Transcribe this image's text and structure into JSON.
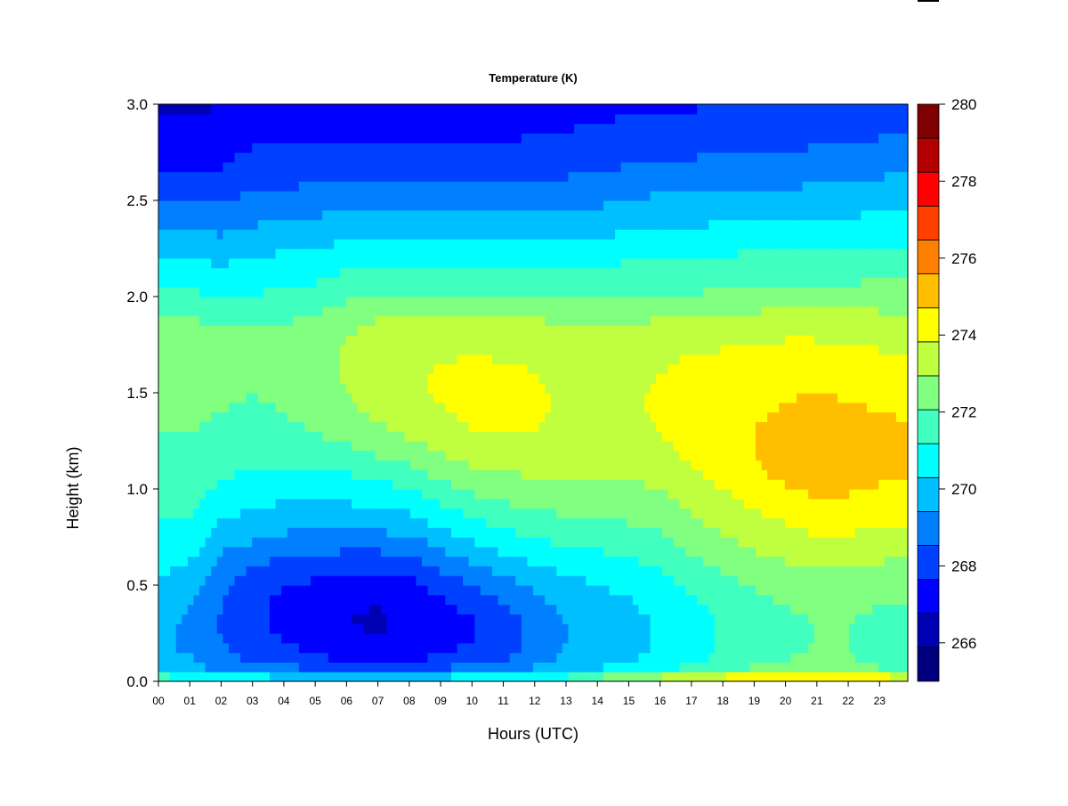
{
  "chart_data": {
    "type": "heatmap",
    "title": "Temperature (K)",
    "xlabel": "Hours (UTC)",
    "ylabel": "Height (km)",
    "x_ticks": [
      "00",
      "01",
      "02",
      "03",
      "04",
      "05",
      "06",
      "07",
      "08",
      "09",
      "10",
      "11",
      "12",
      "13",
      "14",
      "15",
      "16",
      "17",
      "18",
      "19",
      "20",
      "21",
      "22",
      "23"
    ],
    "y_ticks": [
      "0.0",
      "0.5",
      "1.0",
      "1.5",
      "2.0",
      "2.5",
      "3.0"
    ],
    "xlim": [
      0,
      23.9
    ],
    "ylim": [
      0,
      3.0
    ],
    "colorbar": {
      "min": 265,
      "max": 280,
      "step": 1,
      "tick_labels": [
        "266",
        "268",
        "270",
        "272",
        "274",
        "276",
        "278",
        "280"
      ],
      "colors": [
        "#00007F",
        "#0000B3",
        "#0000FF",
        "#0040FF",
        "#0080FF",
        "#00BFFF",
        "#00FFFF",
        "#40FFBF",
        "#80FF80",
        "#BFFF40",
        "#FFFF00",
        "#FFBF00",
        "#FF8000",
        "#FF4000",
        "#FF0000",
        "#B30000",
        "#7F0000"
      ]
    },
    "heights_km": [
      0.0,
      0.05,
      0.1,
      0.2,
      0.3,
      0.4,
      0.5,
      0.6,
      0.7,
      0.8,
      0.9,
      1.0,
      1.1,
      1.2,
      1.3,
      1.4,
      1.5,
      1.6,
      1.7,
      1.8,
      1.9,
      2.0,
      2.2,
      2.4,
      2.6,
      2.8,
      3.0
    ],
    "hours_utc": [
      0,
      1,
      2,
      3,
      4,
      5,
      6,
      7,
      8,
      9,
      10,
      11,
      12,
      13,
      14,
      15,
      16,
      17,
      18,
      19,
      20,
      21,
      22,
      23,
      23.9
    ],
    "temperature_K": [
      [
        273.3,
        270.8,
        270.3,
        270.2,
        270.3,
        270.6,
        270.8,
        271.2,
        271.6,
        271.9,
        272.2,
        272.4,
        272.6,
        272.8,
        273.0,
        273.2,
        273.3,
        273.4,
        273.4,
        273.3,
        273.0,
        272.2,
        271.0,
        269.6,
        268.3,
        267.5,
        266.8
      ],
      [
        273.2,
        270.6,
        270.1,
        269.8,
        269.8,
        270.1,
        270.4,
        270.9,
        271.4,
        271.8,
        272.1,
        272.4,
        272.6,
        272.8,
        273.0,
        273.2,
        273.3,
        273.4,
        273.4,
        273.3,
        273.0,
        272.2,
        271.0,
        269.6,
        268.3,
        267.4,
        266.8
      ],
      [
        272.6,
        270.0,
        269.4,
        269.0,
        268.9,
        269.0,
        269.2,
        269.6,
        270.2,
        270.8,
        271.3,
        271.8,
        272.2,
        272.6,
        272.8,
        273.0,
        273.1,
        273.2,
        273.2,
        273.1,
        272.8,
        272.0,
        270.8,
        269.5,
        268.3,
        267.5,
        267.0
      ],
      [
        272.4,
        269.8,
        269.0,
        268.5,
        268.3,
        268.3,
        268.5,
        269.0,
        269.8,
        270.5,
        271.0,
        271.5,
        272.0,
        272.4,
        272.7,
        272.9,
        273.0,
        273.1,
        273.2,
        273.1,
        272.8,
        272.1,
        271.0,
        269.8,
        268.7,
        267.9,
        267.3
      ],
      [
        272.2,
        269.6,
        268.6,
        268.0,
        267.7,
        267.7,
        268.0,
        268.6,
        269.5,
        270.2,
        270.8,
        271.4,
        271.9,
        272.4,
        272.8,
        273.0,
        273.1,
        273.2,
        273.2,
        273.1,
        272.8,
        272.2,
        271.2,
        270.0,
        268.8,
        267.9,
        267.3
      ],
      [
        272.0,
        269.4,
        268.3,
        267.6,
        267.3,
        267.4,
        267.8,
        268.5,
        269.3,
        270.1,
        270.8,
        271.4,
        272.0,
        272.6,
        273.0,
        273.3,
        273.5,
        273.6,
        273.6,
        273.5,
        273.1,
        272.4,
        271.3,
        270.1,
        268.9,
        268.0,
        267.5
      ],
      [
        272.0,
        269.2,
        268.0,
        267.3,
        267.0,
        267.1,
        267.6,
        268.3,
        269.2,
        270.1,
        270.8,
        271.5,
        272.1,
        272.8,
        273.4,
        273.8,
        274.0,
        274.1,
        274.1,
        274.0,
        273.6,
        272.8,
        271.6,
        270.3,
        269.0,
        268.0,
        267.5
      ],
      [
        272.0,
        269.1,
        267.8,
        267.1,
        266.9,
        267.0,
        267.5,
        268.3,
        269.2,
        270.2,
        271.0,
        271.7,
        272.4,
        273.2,
        273.8,
        274.2,
        274.5,
        274.6,
        274.5,
        274.3,
        273.9,
        273.0,
        271.7,
        270.3,
        269.0,
        268.0,
        267.4
      ],
      [
        272.2,
        269.2,
        268.0,
        267.3,
        267.1,
        267.2,
        267.6,
        268.4,
        269.4,
        270.4,
        271.2,
        272.0,
        272.8,
        273.6,
        274.2,
        274.6,
        274.8,
        274.8,
        274.7,
        274.5,
        274.0,
        273.1,
        271.8,
        270.3,
        268.9,
        267.9,
        267.3
      ],
      [
        272.4,
        269.5,
        268.3,
        267.6,
        267.5,
        267.8,
        268.4,
        269.2,
        270.1,
        271.0,
        271.8,
        272.6,
        273.4,
        274.1,
        274.6,
        274.9,
        275.1,
        275.1,
        274.9,
        274.6,
        274.1,
        273.1,
        271.8,
        270.4,
        269.0,
        268.0,
        267.4
      ],
      [
        272.5,
        269.7,
        268.6,
        268.0,
        267.9,
        268.3,
        269.0,
        269.9,
        270.8,
        271.6,
        272.4,
        273.2,
        273.9,
        274.5,
        275.0,
        275.2,
        275.3,
        275.2,
        275.0,
        274.6,
        274.0,
        273.0,
        271.7,
        270.3,
        269.0,
        268.0,
        267.4
      ],
      [
        272.6,
        270.0,
        269.0,
        268.5,
        268.5,
        268.9,
        269.5,
        270.4,
        271.3,
        272.1,
        272.8,
        273.5,
        274.1,
        274.7,
        275.1,
        275.3,
        275.3,
        275.2,
        274.9,
        274.5,
        274.0,
        273.0,
        271.7,
        270.3,
        269.0,
        268.0,
        267.5
      ],
      [
        272.8,
        270.4,
        269.6,
        269.3,
        269.3,
        269.7,
        270.2,
        270.9,
        271.7,
        272.4,
        273.0,
        273.6,
        274.2,
        274.7,
        275.0,
        275.1,
        275.1,
        275.0,
        274.8,
        274.4,
        273.9,
        272.9,
        271.6,
        270.2,
        269.0,
        268.1,
        267.6
      ],
      [
        273.0,
        270.8,
        270.2,
        270.0,
        270.0,
        270.3,
        270.7,
        271.3,
        272.0,
        272.6,
        273.2,
        273.7,
        274.2,
        274.6,
        274.8,
        274.9,
        274.9,
        274.8,
        274.6,
        274.3,
        273.8,
        272.9,
        271.6,
        270.3,
        269.1,
        268.2,
        267.6
      ],
      [
        274.5,
        271.3,
        270.6,
        270.4,
        270.4,
        270.6,
        271.0,
        271.5,
        272.1,
        272.7,
        273.2,
        273.7,
        274.1,
        274.5,
        274.8,
        274.9,
        274.9,
        274.8,
        274.6,
        274.3,
        273.8,
        272.9,
        271.7,
        270.4,
        269.2,
        268.3,
        267.7
      ],
      [
        275.5,
        271.6,
        270.9,
        270.7,
        270.7,
        270.9,
        271.2,
        271.7,
        272.3,
        272.9,
        273.4,
        273.8,
        274.2,
        274.6,
        274.8,
        274.9,
        274.9,
        274.8,
        274.6,
        274.3,
        273.8,
        273.0,
        271.9,
        270.6,
        269.4,
        268.5,
        267.8
      ],
      [
        276.0,
        272.0,
        271.3,
        271.1,
        271.1,
        271.3,
        271.6,
        272.1,
        272.6,
        273.1,
        273.6,
        274.0,
        274.4,
        274.8,
        275.0,
        275.1,
        275.1,
        275.0,
        274.8,
        274.4,
        273.9,
        273.1,
        272.0,
        270.8,
        269.6,
        268.6,
        267.9
      ],
      [
        276.4,
        272.5,
        271.8,
        271.6,
        271.6,
        271.8,
        272.2,
        272.7,
        273.2,
        273.7,
        274.1,
        274.5,
        274.9,
        275.2,
        275.4,
        275.5,
        275.4,
        275.3,
        275.0,
        274.6,
        274.0,
        273.1,
        272.0,
        270.8,
        269.6,
        268.6,
        267.9
      ],
      [
        276.9,
        273.0,
        272.3,
        272.1,
        272.1,
        272.3,
        272.7,
        273.2,
        273.7,
        274.2,
        274.6,
        275.0,
        275.4,
        275.6,
        275.7,
        275.7,
        275.6,
        275.4,
        275.1,
        274.7,
        274.1,
        273.2,
        272.1,
        270.9,
        269.7,
        268.7,
        268.0
      ],
      [
        277.5,
        273.4,
        272.7,
        272.5,
        272.5,
        272.7,
        273.1,
        273.6,
        274.1,
        274.6,
        275.0,
        275.5,
        275.9,
        276.0,
        276.0,
        275.9,
        275.7,
        275.5,
        275.2,
        274.8,
        274.2,
        273.3,
        272.2,
        270.9,
        269.7,
        268.7,
        268.0
      ],
      [
        277.6,
        273.7,
        273.0,
        272.8,
        272.8,
        273.0,
        273.4,
        273.9,
        274.4,
        274.9,
        275.4,
        275.9,
        276.3,
        276.4,
        276.3,
        276.1,
        275.9,
        275.6,
        275.3,
        274.9,
        274.3,
        273.4,
        272.3,
        271.0,
        269.8,
        268.8,
        268.1
      ],
      [
        277.8,
        273.8,
        273.2,
        273.0,
        273.0,
        273.2,
        273.6,
        274.1,
        274.6,
        275.2,
        275.7,
        276.2,
        276.5,
        276.6,
        276.5,
        276.3,
        276.0,
        275.7,
        275.3,
        274.9,
        274.3,
        273.4,
        272.3,
        271.1,
        269.9,
        268.9,
        268.2
      ],
      [
        277.6,
        273.6,
        273.1,
        273.0,
        273.0,
        273.2,
        273.6,
        274.1,
        274.6,
        275.2,
        275.7,
        276.1,
        276.4,
        276.5,
        276.4,
        276.2,
        275.9,
        275.6,
        275.2,
        274.8,
        274.3,
        273.4,
        272.3,
        271.1,
        270.0,
        269.0,
        268.3
      ],
      [
        277.2,
        273.2,
        272.8,
        272.7,
        272.8,
        273.0,
        273.4,
        273.9,
        274.4,
        275.0,
        275.5,
        275.9,
        276.2,
        276.3,
        276.2,
        276.0,
        275.7,
        275.4,
        275.1,
        274.7,
        274.2,
        273.4,
        272.4,
        271.2,
        270.1,
        269.1,
        268.4
      ],
      [
        276.6,
        272.8,
        272.5,
        272.5,
        272.6,
        272.9,
        273.3,
        273.8,
        274.3,
        274.9,
        275.4,
        275.8,
        276.1,
        276.2,
        276.1,
        275.9,
        275.6,
        275.3,
        275.0,
        274.6,
        274.1,
        273.4,
        272.4,
        271.3,
        270.2,
        269.2,
        268.5
      ]
    ]
  }
}
